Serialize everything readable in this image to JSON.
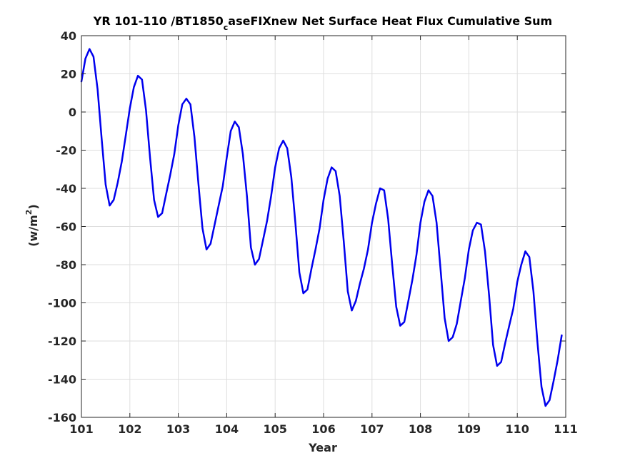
{
  "chart_data": {
    "type": "line",
    "title": {
      "before_sub": "YR 101-110 /BT1850",
      "sub": "c",
      "after_sub": "aseFIXnew Net Surface Heat Flux  Cumulative Sum"
    },
    "xlabel": "Year",
    "ylabel": {
      "base": "(w/m",
      "sup": "2",
      "close": ")"
    },
    "xlim": [
      101,
      111
    ],
    "ylim": [
      -160,
      40
    ],
    "xticks": [
      101,
      102,
      103,
      104,
      105,
      106,
      107,
      108,
      109,
      110,
      111
    ],
    "yticks": [
      40,
      20,
      0,
      -20,
      -40,
      -60,
      -80,
      -100,
      -120,
      -140,
      -160
    ],
    "grid": true,
    "series": [
      {
        "color": "#0000ee",
        "x": [
          101.0,
          101.083,
          101.167,
          101.25,
          101.333,
          101.417,
          101.5,
          101.583,
          101.667,
          101.75,
          101.833,
          101.917,
          102.0,
          102.083,
          102.167,
          102.25,
          102.333,
          102.417,
          102.5,
          102.583,
          102.667,
          102.75,
          102.833,
          102.917,
          103.0,
          103.083,
          103.167,
          103.25,
          103.333,
          103.417,
          103.5,
          103.583,
          103.667,
          103.75,
          103.833,
          103.917,
          104.0,
          104.083,
          104.167,
          104.25,
          104.333,
          104.417,
          104.5,
          104.583,
          104.667,
          104.75,
          104.833,
          104.917,
          105.0,
          105.083,
          105.167,
          105.25,
          105.333,
          105.417,
          105.5,
          105.583,
          105.667,
          105.75,
          105.833,
          105.917,
          106.0,
          106.083,
          106.167,
          106.25,
          106.333,
          106.417,
          106.5,
          106.583,
          106.667,
          106.75,
          106.833,
          106.917,
          107.0,
          107.083,
          107.167,
          107.25,
          107.333,
          107.417,
          107.5,
          107.583,
          107.667,
          107.75,
          107.833,
          107.917,
          108.0,
          108.083,
          108.167,
          108.25,
          108.333,
          108.417,
          108.5,
          108.583,
          108.667,
          108.75,
          108.833,
          108.917,
          109.0,
          109.083,
          109.167,
          109.25,
          109.333,
          109.417,
          109.5,
          109.583,
          109.667,
          109.75,
          109.833,
          109.917,
          110.0,
          110.083,
          110.167,
          110.25,
          110.333,
          110.417,
          110.5,
          110.583,
          110.667,
          110.75,
          110.833,
          110.917
        ],
        "y": [
          16,
          28,
          33,
          29,
          12,
          -14,
          -38,
          -49,
          -46,
          -37,
          -26,
          -12,
          2,
          13,
          19,
          17,
          1,
          -24,
          -46,
          -55,
          -53,
          -43,
          -33,
          -22,
          -7,
          4,
          7,
          4,
          -13,
          -38,
          -61,
          -72,
          -69,
          -59,
          -49,
          -39,
          -24,
          -10,
          -5,
          -8,
          -22,
          -44,
          -71,
          -80,
          -77,
          -67,
          -57,
          -44,
          -29,
          -19,
          -15,
          -19,
          -34,
          -58,
          -84,
          -95,
          -93,
          -82,
          -72,
          -61,
          -46,
          -35,
          -29,
          -31,
          -44,
          -68,
          -94,
          -104,
          -99,
          -90,
          -82,
          -72,
          -58,
          -48,
          -40,
          -41,
          -56,
          -80,
          -102,
          -112,
          -110,
          -99,
          -88,
          -75,
          -58,
          -47,
          -41,
          -44,
          -58,
          -83,
          -108,
          -120,
          -118,
          -111,
          -99,
          -87,
          -72,
          -62,
          -58,
          -59,
          -73,
          -96,
          -122,
          -133,
          -131,
          -121,
          -112,
          -103,
          -89,
          -80,
          -73,
          -76,
          -94,
          -121,
          -144,
          -154,
          -151,
          -141,
          -130,
          -117
        ]
      }
    ]
  }
}
